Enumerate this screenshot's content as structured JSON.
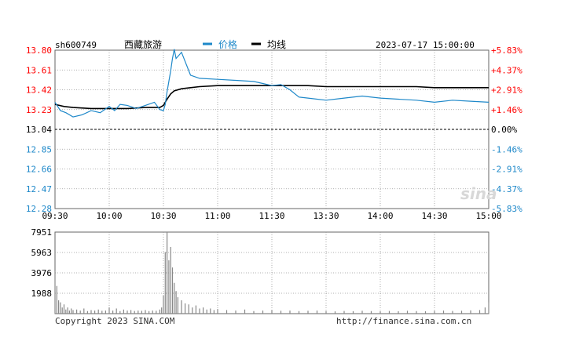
{
  "chart_data": {
    "type": "line",
    "symbol": "sh600749",
    "name": "西藏旅游",
    "datetime": "2023-07-17 15:00:00",
    "legend": [
      {
        "name": "价格",
        "color": "#1e88c9"
      },
      {
        "name": "均线",
        "color": "#000000"
      }
    ],
    "prev_close": 13.04,
    "price_axis": {
      "ticks": [
        "13.80",
        "13.61",
        "13.42",
        "13.23",
        "13.04",
        "12.85",
        "12.66",
        "12.47",
        "12.28"
      ],
      "up_color": "#ff0000",
      "flat_color": "#000000",
      "down_color": "#1e88c9",
      "ylim": [
        12.28,
        13.8
      ]
    },
    "pct_axis": {
      "ticks": [
        "+5.83%",
        "+4.37%",
        "+2.91%",
        "+1.46%",
        "0.00%",
        "-1.46%",
        "-2.91%",
        "-4.37%",
        "-5.83%"
      ]
    },
    "time_axis": {
      "labels": [
        "09:30",
        "10:00",
        "10:30",
        "11:00",
        "11:30",
        "13:30",
        "14:00",
        "14:30",
        "15:00"
      ]
    },
    "price_series": {
      "name": "价格",
      "x": [
        0,
        3,
        6,
        10,
        15,
        20,
        25,
        30,
        33,
        36,
        40,
        45,
        50,
        55,
        58,
        60,
        61,
        62,
        63,
        64,
        65,
        66,
        67,
        70,
        75,
        80,
        90,
        100,
        110,
        115,
        120,
        125,
        130,
        135,
        140,
        150,
        160,
        170,
        180,
        190,
        200,
        210,
        220,
        230,
        240
      ],
      "values": [
        13.3,
        13.22,
        13.2,
        13.16,
        13.18,
        13.22,
        13.2,
        13.26,
        13.22,
        13.28,
        13.27,
        13.24,
        13.27,
        13.3,
        13.23,
        13.22,
        13.28,
        13.4,
        13.5,
        13.6,
        13.72,
        13.81,
        13.72,
        13.78,
        13.56,
        13.53,
        13.52,
        13.51,
        13.5,
        13.48,
        13.46,
        13.47,
        13.42,
        13.35,
        13.34,
        13.32,
        13.34,
        13.36,
        13.34,
        13.33,
        13.32,
        13.3,
        13.32,
        13.31,
        13.3
      ]
    },
    "avg_series": {
      "name": "均线",
      "x": [
        0,
        5,
        10,
        20,
        30,
        40,
        50,
        55,
        58,
        60,
        62,
        64,
        66,
        70,
        75,
        80,
        90,
        100,
        110,
        120,
        130,
        140,
        150,
        160,
        170,
        180,
        190,
        200,
        210,
        220,
        230,
        240
      ],
      "values": [
        13.28,
        13.26,
        13.25,
        13.24,
        13.24,
        13.24,
        13.25,
        13.25,
        13.25,
        13.27,
        13.33,
        13.38,
        13.41,
        13.43,
        13.44,
        13.45,
        13.46,
        13.46,
        13.46,
        13.46,
        13.46,
        13.46,
        13.45,
        13.45,
        13.45,
        13.45,
        13.45,
        13.45,
        13.44,
        13.44,
        13.44,
        13.44
      ]
    },
    "volume": {
      "ticks": [
        "7951",
        "5963",
        "3976",
        "1988"
      ],
      "ylim": [
        0,
        7951
      ],
      "x": [
        0,
        1,
        2,
        3,
        4,
        5,
        6,
        7,
        8,
        9,
        10,
        12,
        14,
        16,
        18,
        20,
        22,
        24,
        26,
        28,
        30,
        32,
        34,
        36,
        38,
        40,
        42,
        44,
        46,
        48,
        50,
        52,
        54,
        56,
        58,
        59,
        60,
        61,
        62,
        63,
        64,
        65,
        66,
        67,
        68,
        70,
        72,
        74,
        76,
        78,
        80,
        82,
        84,
        86,
        88,
        90,
        95,
        100,
        105,
        110,
        115,
        120,
        125,
        130,
        135,
        140,
        145,
        150,
        155,
        160,
        165,
        170,
        175,
        180,
        185,
        190,
        195,
        200,
        205,
        210,
        215,
        220,
        225,
        230,
        235,
        238,
        240
      ],
      "values": [
        4200,
        2700,
        1300,
        1100,
        600,
        900,
        400,
        600,
        300,
        500,
        350,
        400,
        300,
        500,
        250,
        350,
        300,
        400,
        280,
        300,
        600,
        300,
        500,
        250,
        400,
        300,
        350,
        260,
        300,
        280,
        350,
        250,
        300,
        280,
        400,
        600,
        1800,
        6000,
        7951,
        5200,
        6500,
        4500,
        3000,
        2200,
        1600,
        1300,
        1000,
        900,
        600,
        800,
        500,
        600,
        400,
        500,
        350,
        450,
        350,
        300,
        400,
        250,
        300,
        350,
        280,
        300,
        250,
        280,
        300,
        250,
        220,
        260,
        240,
        280,
        250,
        230,
        260,
        240,
        280,
        250,
        230,
        270,
        300,
        260,
        280,
        320,
        350,
        600,
        1100
      ]
    },
    "footer_left": "Copyright 2023 SINA.COM",
    "footer_right": "http://finance.sina.com.cn",
    "watermark": "sina"
  }
}
